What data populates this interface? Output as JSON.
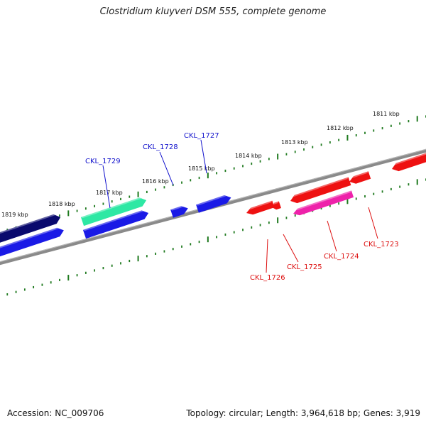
{
  "title": "Clostridium kluyveri DSM 555, complete genome",
  "footer": {
    "accession": "Accession: NC_009706",
    "info": "Topology: circular; Length: 3,964,618 bp; Genes: 3,919"
  },
  "colors": {
    "backbone": "#8a8a8a",
    "tick": "#1f7a1f",
    "forward_label": "#1010cc",
    "reverse_label": "#dd1010"
  },
  "kbp_ticks": [
    {
      "label": "1811 kbp"
    },
    {
      "label": "1812 kbp"
    },
    {
      "label": "1813 kbp"
    },
    {
      "label": "1814 kbp"
    },
    {
      "label": "1815 kbp"
    },
    {
      "label": "1816 kbp"
    },
    {
      "label": "1817 kbp"
    },
    {
      "label": "1818 kbp"
    },
    {
      "label": "1819 kbp"
    }
  ],
  "genes": [
    {
      "id": "navy-top",
      "strand": "forward",
      "color": "#0a0a6e",
      "label": ""
    },
    {
      "id": "blue-left",
      "strand": "forward",
      "color": "#1a1ae6",
      "label": ""
    },
    {
      "id": "CKL_1729",
      "strand": "forward",
      "color": "#2ee8a4",
      "label": ""
    },
    {
      "id": "blue-mid",
      "strand": "forward",
      "color": "#1a1ae6",
      "label": ""
    },
    {
      "id": "CKL_1728",
      "strand": "forward",
      "color": "#1a1ae6",
      "label": ""
    },
    {
      "id": "CKL_1727",
      "strand": "forward",
      "color": "#1a1ae6",
      "label": ""
    },
    {
      "id": "CKL_1726",
      "strand": "reverse",
      "color": "#ee1111",
      "label": ""
    },
    {
      "id": "CKL_1725",
      "strand": "reverse",
      "color": "#ee1111",
      "label": ""
    },
    {
      "id": "red-long",
      "strand": "reverse",
      "color": "#ee1111",
      "label": ""
    },
    {
      "id": "CKL_1724",
      "strand": "reverse",
      "color": "#ee22aa",
      "label": ""
    },
    {
      "id": "CKL_1723",
      "strand": "reverse",
      "color": "#ee1111",
      "label": ""
    },
    {
      "id": "red-edge",
      "strand": "reverse",
      "color": "#ee1111",
      "label": ""
    }
  ],
  "gene_labels": [
    {
      "text": "CKL_1729",
      "strand": "forward"
    },
    {
      "text": "CKL_1728",
      "strand": "forward"
    },
    {
      "text": "CKL_1727",
      "strand": "forward"
    },
    {
      "text": "CKL_1726",
      "strand": "reverse"
    },
    {
      "text": "CKL_1725",
      "strand": "reverse"
    },
    {
      "text": "CKL_1724",
      "strand": "reverse"
    },
    {
      "text": "CKL_1723",
      "strand": "reverse"
    }
  ]
}
